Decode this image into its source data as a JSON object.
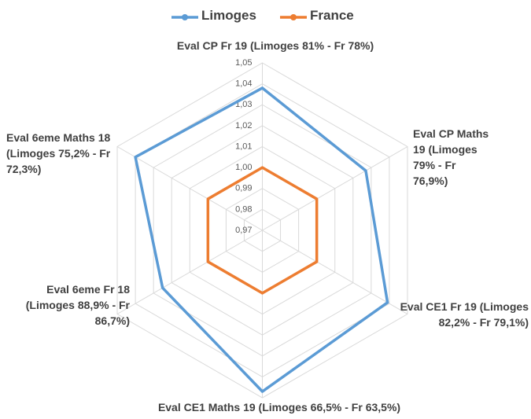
{
  "chart_data": {
    "type": "radar",
    "categories": [
      "Eval CP Fr 19 (Limoges 81% - Fr 78%)",
      "Eval CP Maths 19 (Limoges 79% - Fr 76,9%)",
      "Eval CE1 Fr 19 (Limoges 82,2% - Fr 79,1%)",
      "Eval CE1 Maths 19 (Limoges 66,5% - Fr 63,5%)",
      "Eval 6eme Fr 18 (Limoges 88,9% - Fr 86,7%)",
      "Eval 6eme Maths 18 (Limoges 75,2% - Fr 72,3%)"
    ],
    "series": [
      {
        "name": "Limoges",
        "color": "#5b9bd5",
        "values": [
          1.038,
          1.027,
          1.039,
          1.047,
          1.025,
          1.04
        ]
      },
      {
        "name": "France",
        "color": "#ed7d31",
        "values": [
          1.0,
          1.0,
          1.0,
          1.0,
          1.0,
          1.0
        ]
      }
    ],
    "ylim": [
      0.97,
      1.05
    ],
    "yticks": [
      {
        "value": 0.97,
        "label": "0,97"
      },
      {
        "value": 0.98,
        "label": "0,98"
      },
      {
        "value": 0.99,
        "label": "0,99"
      },
      {
        "value": 1.0,
        "label": "1,00"
      },
      {
        "value": 1.01,
        "label": "1,01"
      },
      {
        "value": 1.02,
        "label": "1,02"
      },
      {
        "value": 1.03,
        "label": "1,03"
      },
      {
        "value": 1.04,
        "label": "1,04"
      },
      {
        "value": 1.05,
        "label": "1,05"
      }
    ],
    "grid": true,
    "legend": "top"
  }
}
